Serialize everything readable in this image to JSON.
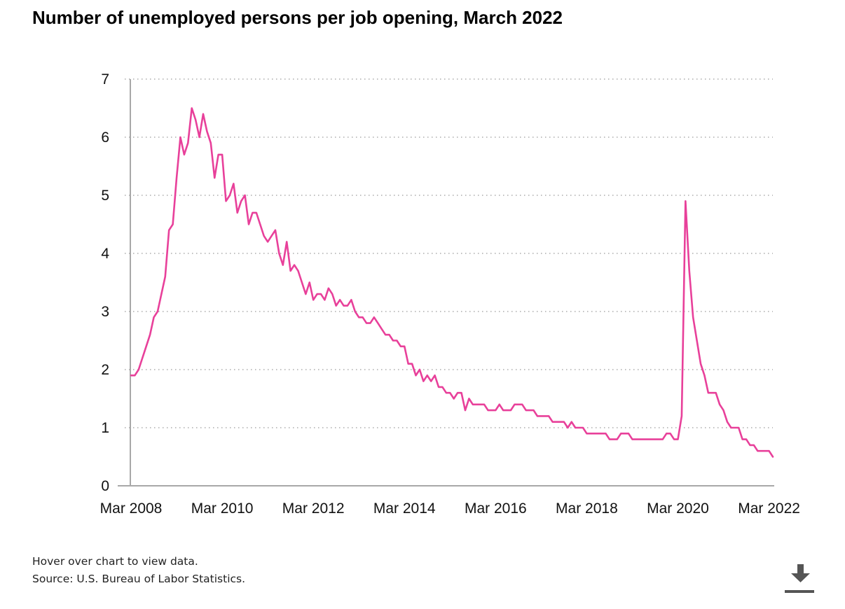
{
  "title": "Number of unemployed persons per job opening, March 2022",
  "footer": {
    "hover_note": "Hover over chart to view data.",
    "source": "Source: U.S. Bureau of Labor Statistics."
  },
  "colors": {
    "series": "#e8409a",
    "grid": "#9a9a9a",
    "axis": "#a8a8a8",
    "icon": "#555555"
  },
  "download_icon": "download-icon",
  "chart_data": {
    "type": "line",
    "title": "Number of unemployed persons per job opening, March 2022",
    "xlabel": "",
    "ylabel": "",
    "ylim": [
      0,
      7
    ],
    "yticks": [
      "0",
      "1",
      "2",
      "3",
      "4",
      "5",
      "6",
      "7"
    ],
    "xticks": [
      "Mar 2008",
      "Mar 2010",
      "Mar 2012",
      "Mar 2014",
      "Mar 2016",
      "Mar 2018",
      "Mar 2020",
      "Mar 2022"
    ],
    "grid": true,
    "x_start": "Mar 2008",
    "x_end": "Mar 2022",
    "frequency": "monthly",
    "series": [
      {
        "values": [
          1.9,
          1.9,
          2.0,
          2.2,
          2.4,
          2.6,
          2.9,
          3.0,
          3.3,
          3.6,
          4.4,
          4.5,
          5.3,
          6.0,
          5.7,
          5.9,
          6.5,
          6.3,
          6.0,
          6.4,
          6.1,
          5.9,
          5.3,
          5.7,
          5.7,
          4.9,
          5.0,
          5.2,
          4.7,
          4.9,
          5.0,
          4.5,
          4.7,
          4.7,
          4.5,
          4.3,
          4.2,
          4.3,
          4.4,
          4.0,
          3.8,
          4.2,
          3.7,
          3.8,
          3.7,
          3.5,
          3.3,
          3.5,
          3.2,
          3.3,
          3.3,
          3.2,
          3.4,
          3.3,
          3.1,
          3.2,
          3.1,
          3.1,
          3.2,
          3.0,
          2.9,
          2.9,
          2.8,
          2.8,
          2.9,
          2.8,
          2.7,
          2.6,
          2.6,
          2.5,
          2.5,
          2.4,
          2.4,
          2.1,
          2.1,
          1.9,
          2.0,
          1.8,
          1.9,
          1.8,
          1.9,
          1.7,
          1.7,
          1.6,
          1.6,
          1.5,
          1.6,
          1.6,
          1.3,
          1.5,
          1.4,
          1.4,
          1.4,
          1.4,
          1.3,
          1.3,
          1.3,
          1.4,
          1.3,
          1.3,
          1.3,
          1.4,
          1.4,
          1.4,
          1.3,
          1.3,
          1.3,
          1.2,
          1.2,
          1.2,
          1.2,
          1.1,
          1.1,
          1.1,
          1.1,
          1.0,
          1.1,
          1.0,
          1.0,
          1.0,
          0.9,
          0.9,
          0.9,
          0.9,
          0.9,
          0.9,
          0.8,
          0.8,
          0.8,
          0.9,
          0.9,
          0.9,
          0.8,
          0.8,
          0.8,
          0.8,
          0.8,
          0.8,
          0.8,
          0.8,
          0.8,
          0.9,
          0.9,
          0.8,
          0.8,
          1.2,
          4.9,
          3.7,
          2.9,
          2.5,
          2.1,
          1.9,
          1.6,
          1.6,
          1.6,
          1.4,
          1.3,
          1.1,
          1.0,
          1.0,
          1.0,
          0.8,
          0.8,
          0.7,
          0.7,
          0.6,
          0.6,
          0.6,
          0.6,
          0.5
        ]
      }
    ]
  }
}
